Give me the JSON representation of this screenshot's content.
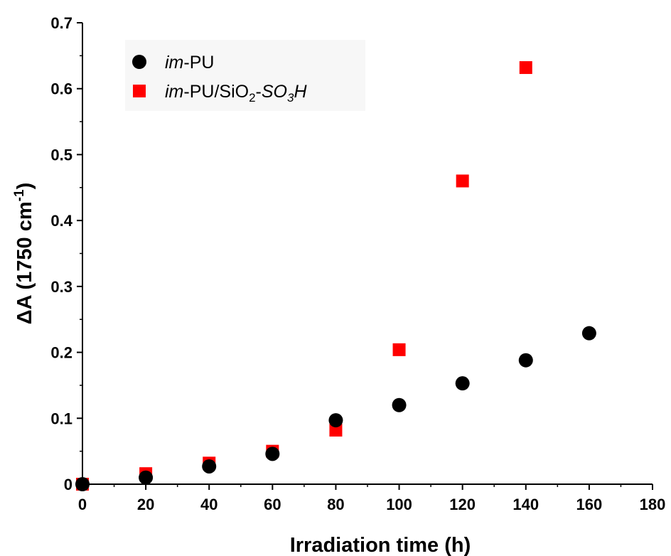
{
  "chart_data": {
    "type": "scatter",
    "title": "",
    "xlabel": "Irradiation time (h)",
    "ylabel": "ΔA (1750 cm-1)",
    "ylabel_parts": {
      "main": "ΔA (1750 cm",
      "sup": "-1",
      "close": ")"
    },
    "xlim": [
      0,
      180
    ],
    "ylim": [
      0,
      0.7
    ],
    "xticks": [
      0,
      20,
      40,
      60,
      80,
      100,
      120,
      140,
      160,
      180
    ],
    "yticks": [
      0,
      0.1,
      0.2,
      0.3,
      0.4,
      0.5,
      0.6,
      0.7
    ],
    "x_tick_labels": [
      "0",
      "20",
      "40",
      "60",
      "80",
      "100",
      "120",
      "140",
      "160",
      "180"
    ],
    "y_tick_labels": [
      "0",
      "0.1",
      "0.2",
      "0.3",
      "0.4",
      "0.5",
      "0.6",
      "0.7"
    ],
    "grid": false,
    "legend_position": "top-left",
    "series": [
      {
        "name": "im-PU",
        "label_parts": [
          {
            "text": "im",
            "italic": true
          },
          {
            "text": "-PU"
          }
        ],
        "marker": "circle",
        "color": "#000000",
        "x": [
          0,
          20,
          40,
          60,
          80,
          100,
          120,
          140,
          160
        ],
        "y": [
          0.0,
          0.01,
          0.027,
          0.046,
          0.097,
          0.12,
          0.153,
          0.188,
          0.229
        ]
      },
      {
        "name": "im-PU/SiO2-SO3H",
        "label_parts": [
          {
            "text": "im",
            "italic": true
          },
          {
            "text": "-PU/SiO"
          },
          {
            "text": "2",
            "sub": true
          },
          {
            "text": "-"
          },
          {
            "text": "SO",
            "italic": true
          },
          {
            "text": "3",
            "sub": true,
            "italic": true
          },
          {
            "text": "H",
            "italic": true
          }
        ],
        "marker": "square",
        "color": "#ff0000",
        "x": [
          0,
          20,
          40,
          60,
          80,
          100,
          120,
          140
        ],
        "y": [
          0.0,
          0.016,
          0.032,
          0.05,
          0.082,
          0.204,
          0.46,
          0.632
        ]
      }
    ]
  }
}
